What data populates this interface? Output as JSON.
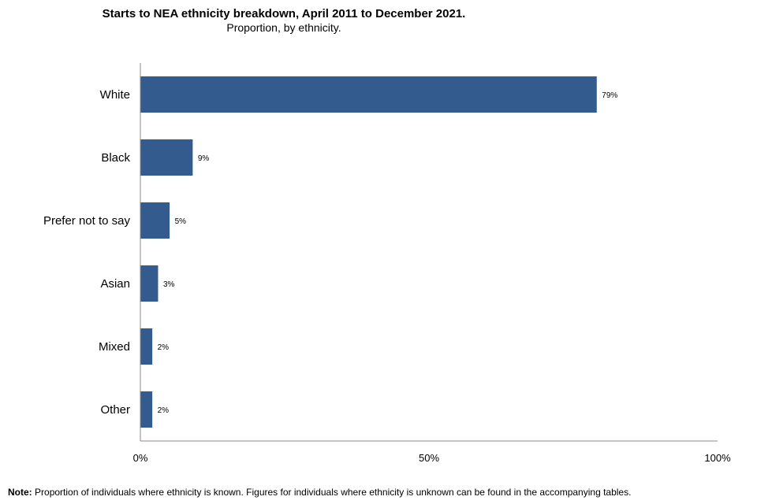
{
  "chart_data": {
    "type": "bar",
    "orientation": "horizontal",
    "title": "Starts to NEA ethnicity breakdown, April 2011 to December 2021.",
    "subtitle": "Proportion, by ethnicity.",
    "categories": [
      "White",
      "Black",
      "Prefer not to say",
      "Asian",
      "Mixed",
      "Other"
    ],
    "values": [
      79,
      9,
      5,
      3,
      2,
      2
    ],
    "data_labels": [
      "79%",
      "9%",
      "5%",
      "3%",
      "2%",
      "2%"
    ],
    "xlim": [
      0,
      100
    ],
    "x_ticks": [
      0,
      50,
      100
    ],
    "x_tick_labels": [
      "0%",
      "50%",
      "100%"
    ],
    "xlabel": "",
    "ylabel": "",
    "bar_color": "#335b8e",
    "grid": false
  },
  "note": {
    "label": "Note:",
    "text": "Proportion of individuals where ethnicity is known. Figures for individuals where ethnicity is unknown can be found in the accompanying tables."
  }
}
